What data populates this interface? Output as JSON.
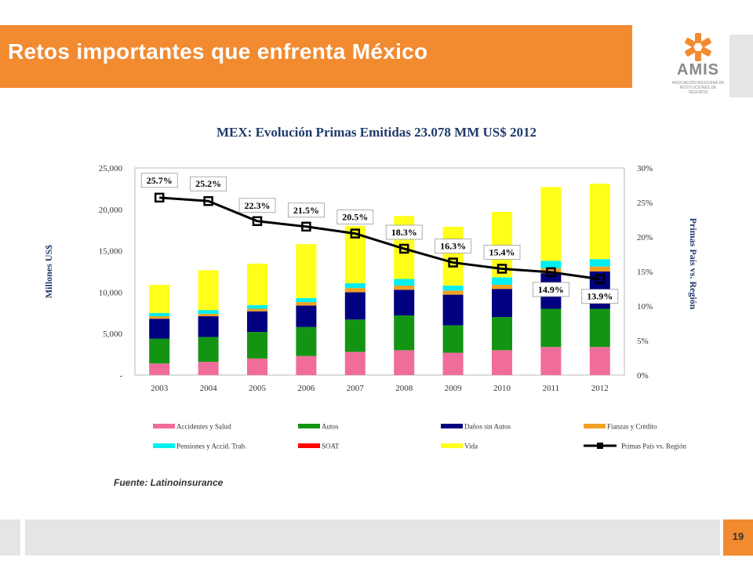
{
  "slide": {
    "title": "Retos importantes que enfrenta México",
    "source": "Fuente: Latinoinsurance",
    "page_number": "19"
  },
  "logo": {
    "name": "AMIS",
    "subtitle": "ASOCIACIÓN MEXICANA DE INSTITUCIONES DE SEGUROS"
  },
  "colors": {
    "accent": "#F28A30",
    "gray": "#E5E5E5",
    "title_text": "#1F3B6B"
  },
  "chart_data": {
    "type": "bar",
    "stacked": true,
    "title": "MEX: Evolución Primas Emitidas 23.078 MM US$ 2012",
    "ylabel": "Millones US$",
    "y2label": "Primas País vs. Región",
    "ylim": [
      0,
      25000
    ],
    "y2lim": [
      0,
      30
    ],
    "y_ticks": [
      "-",
      "5,000",
      "10,000",
      "15,000",
      "20,000",
      "25,000"
    ],
    "y2_ticks": [
      "0%",
      "5%",
      "10%",
      "15%",
      "20%",
      "25%",
      "30%"
    ],
    "categories": [
      "2003",
      "2004",
      "2005",
      "2006",
      "2007",
      "2008",
      "2009",
      "2010",
      "2011",
      "2012"
    ],
    "series": [
      {
        "name": "Accidentes y Salud",
        "color": "#F06C9B",
        "values": [
          1400,
          1600,
          2000,
          2300,
          2800,
          3000,
          2700,
          3000,
          3400,
          3400
        ]
      },
      {
        "name": "Autos",
        "color": "#139513",
        "values": [
          3000,
          3000,
          3200,
          3500,
          3900,
          4200,
          3300,
          4000,
          4600,
          4600
        ]
      },
      {
        "name": "Daños sin Autos",
        "color": "#000080",
        "values": [
          2400,
          2500,
          2500,
          2600,
          3300,
          3100,
          3700,
          3400,
          4300,
          4500
        ]
      },
      {
        "name": "Fianzas y Crédito",
        "color": "#F2A020",
        "values": [
          300,
          300,
          300,
          400,
          500,
          500,
          500,
          500,
          600,
          600
        ]
      },
      {
        "name": "Pensiones y Accid. Trab.",
        "color": "#00F0F0",
        "values": [
          400,
          450,
          450,
          500,
          600,
          800,
          600,
          900,
          900,
          900
        ]
      },
      {
        "name": "SOAT",
        "color": "#FF0000",
        "values": [
          0,
          0,
          0,
          0,
          0,
          0,
          0,
          0,
          0,
          0
        ]
      },
      {
        "name": "Vida",
        "color": "#FFFF1A",
        "values": [
          3400,
          4800,
          5000,
          6500,
          6900,
          7600,
          7100,
          7900,
          8900,
          9100
        ]
      }
    ],
    "line": {
      "name": "Primas País vs. Región",
      "axis": "right",
      "values": [
        25.7,
        25.2,
        22.3,
        21.5,
        20.5,
        18.3,
        16.3,
        15.4,
        14.9,
        13.9
      ],
      "labels": [
        "25.7%",
        "25.2%",
        "22.3%",
        "21.5%",
        "20.5%",
        "18.3%",
        "16.3%",
        "15.4%",
        "14.9%",
        "13.9%"
      ]
    },
    "legend": {
      "placement": "bottom",
      "items": [
        "Accidentes y Salud",
        "Autos",
        "Daños sin Autos",
        "Fianzas y Crédito",
        "Pensiones y Accid. Trab.",
        "SOAT",
        "Vida",
        "Primas País vs. Región"
      ]
    },
    "grid": false
  }
}
